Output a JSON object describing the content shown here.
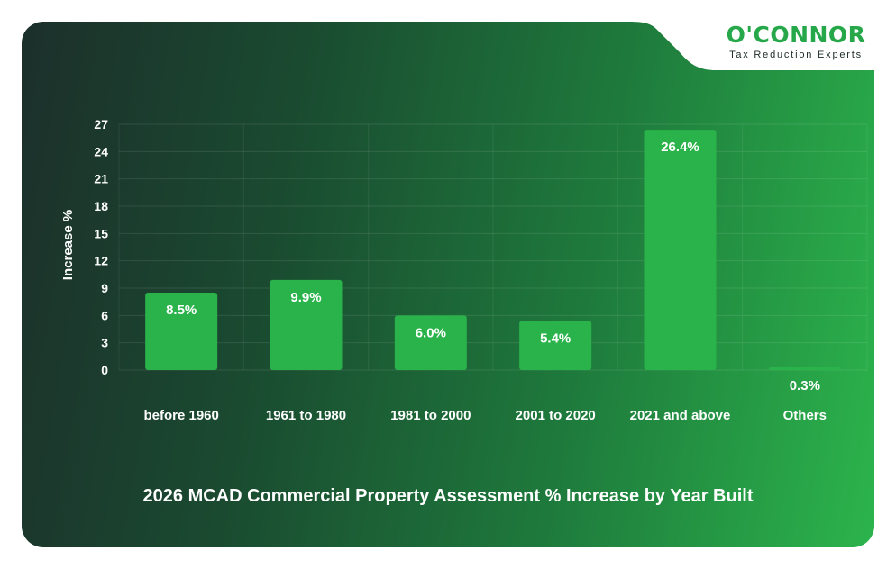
{
  "brand": {
    "name": "O'CONNOR",
    "tagline": "Tax Reduction Experts",
    "color": "#26a84a"
  },
  "colors": {
    "bar": "#2ab34a",
    "text": "#ffffff"
  },
  "chart_data": {
    "type": "bar",
    "title": "2026 MCAD Commercial Property Assessment % Increase by Year Built",
    "ylabel": "Increase %",
    "xlabel": "",
    "categories": [
      "before 1960",
      "1961 to 1980",
      "1981 to 2000",
      "2001 to 2020",
      "2021 and above",
      "Others"
    ],
    "values": [
      8.5,
      9.9,
      6.0,
      5.4,
      26.4,
      0.3
    ],
    "value_labels": [
      "8.5%",
      "9.9%",
      "6.0%",
      "5.4%",
      "26.4%",
      "0.3%"
    ],
    "ylim": [
      0,
      27
    ],
    "yticks": [
      0,
      3,
      6,
      9,
      12,
      15,
      18,
      21,
      24,
      27
    ],
    "grid": true,
    "legend": "none"
  }
}
